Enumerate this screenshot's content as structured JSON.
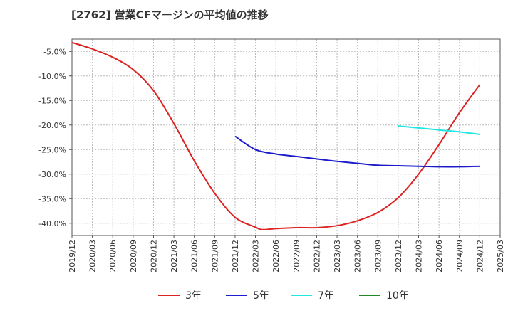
{
  "title": "[2762]  営業CFマージンの平均値の推移",
  "chart_data": {
    "type": "line",
    "x_ticks": [
      "2019/12",
      "2020/03",
      "2020/06",
      "2020/09",
      "2020/12",
      "2021/03",
      "2021/06",
      "2021/09",
      "2021/12",
      "2022/03",
      "2022/06",
      "2022/09",
      "2022/12",
      "2023/03",
      "2023/06",
      "2023/09",
      "2023/12",
      "2024/03",
      "2024/06",
      "2024/09",
      "2024/12",
      "2025/03"
    ],
    "y_ticks": [
      "-5.0%",
      "-10.0%",
      "-15.0%",
      "-20.0%",
      "-25.0%",
      "-30.0%",
      "-35.0%",
      "-40.0%"
    ],
    "y_tick_values": [
      -5,
      -10,
      -15,
      -20,
      -25,
      -30,
      -35,
      -40
    ],
    "ylim": [
      -42.5,
      -2.5
    ],
    "grid": true,
    "legend_position": "bottom",
    "series": [
      {
        "name": "3年",
        "color": "#dd2222",
        "x": [
          "2019/12",
          "2020/03",
          "2020/06",
          "2020/09",
          "2020/12",
          "2021/03",
          "2021/06",
          "2021/09",
          "2021/12",
          "2022/03",
          "2022/04",
          "2022/06",
          "2022/09",
          "2022/12",
          "2023/03",
          "2023/06",
          "2023/09",
          "2023/12",
          "2024/03",
          "2024/06",
          "2024/09",
          "2024/12"
        ],
        "values": [
          -3.2,
          -4.5,
          -6.2,
          -8.7,
          -13.0,
          -19.7,
          -27.3,
          -33.9,
          -38.8,
          -40.8,
          -41.3,
          -41.1,
          -40.9,
          -40.9,
          -40.5,
          -39.5,
          -37.8,
          -34.8,
          -30.0,
          -24.0,
          -17.5,
          -11.8
        ]
      },
      {
        "name": "5年",
        "color": "#1c1ccc",
        "x": [
          "2021/12",
          "2022/03",
          "2022/06",
          "2022/09",
          "2022/12",
          "2023/03",
          "2023/06",
          "2023/09",
          "2023/12",
          "2024/03",
          "2024/06",
          "2024/09",
          "2024/12"
        ],
        "values": [
          -22.3,
          -25.0,
          -25.9,
          -26.4,
          -26.9,
          -27.4,
          -27.8,
          -28.2,
          -28.3,
          -28.4,
          -28.5,
          -28.5,
          -28.4
        ]
      },
      {
        "name": "7年",
        "color": "#22e5e5",
        "x": [
          "2023/12",
          "2024/03",
          "2024/06",
          "2024/09",
          "2024/12"
        ],
        "values": [
          -20.2,
          -20.6,
          -21.0,
          -21.4,
          -21.9
        ]
      },
      {
        "name": "10年",
        "color": "#228822",
        "x": [],
        "values": []
      }
    ]
  }
}
